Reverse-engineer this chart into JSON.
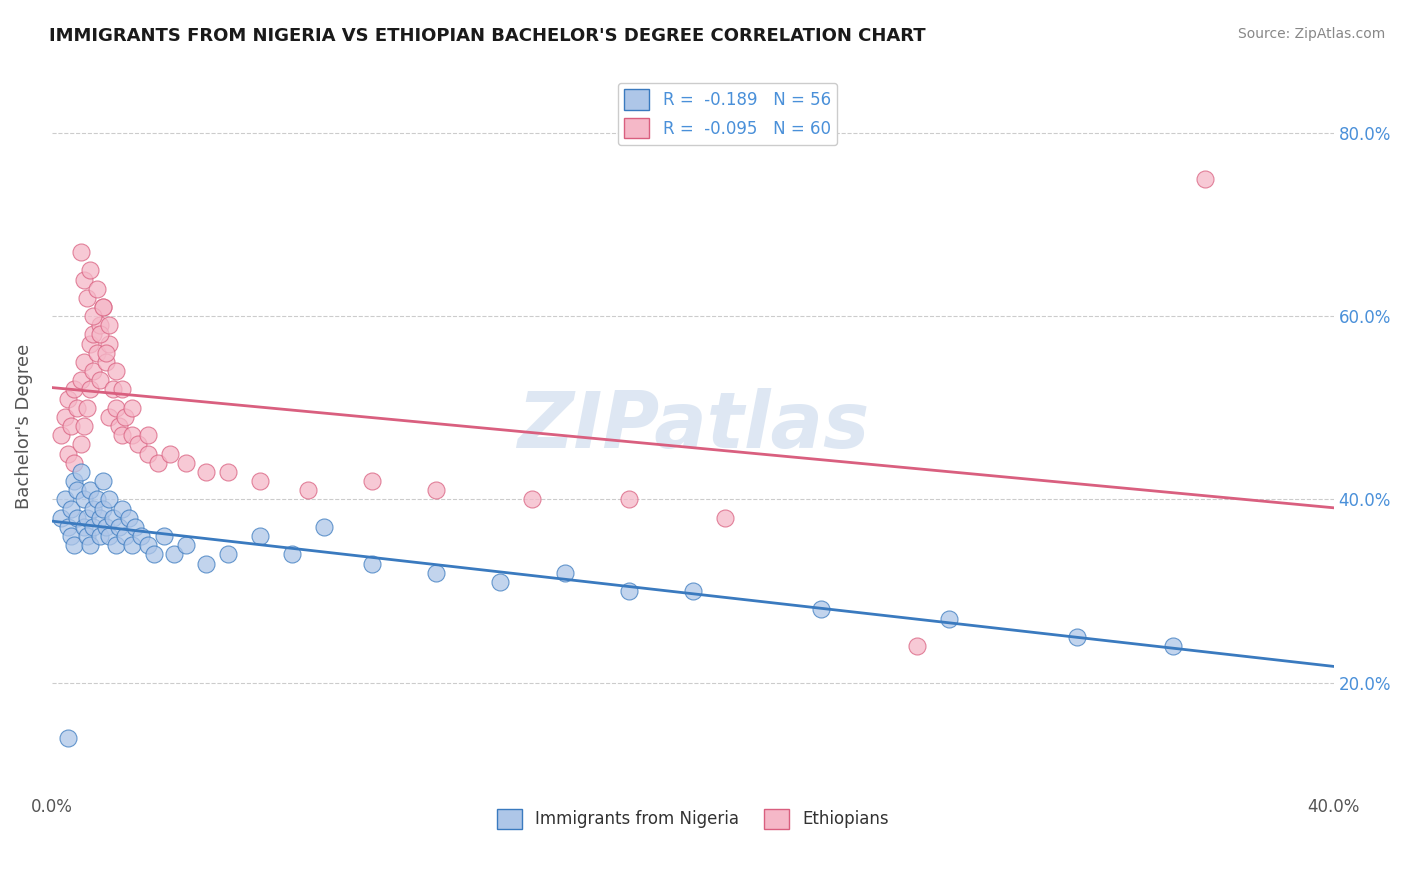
{
  "title": "IMMIGRANTS FROM NIGERIA VS ETHIOPIAN BACHELOR'S DEGREE CORRELATION CHART",
  "source": "Source: ZipAtlas.com",
  "ylabel": "Bachelor's Degree",
  "legend_labels": [
    "Immigrants from Nigeria",
    "Ethiopians"
  ],
  "r_nigeria": -0.189,
  "n_nigeria": 56,
  "r_ethiopian": -0.095,
  "n_ethiopian": 60,
  "xlim": [
    0.0,
    0.4
  ],
  "ylim": [
    0.08,
    0.88
  ],
  "ytick_positions": [
    0.2,
    0.4,
    0.6,
    0.8
  ],
  "ytick_labels": [
    "20.0%",
    "40.0%",
    "60.0%",
    "80.0%"
  ],
  "color_nigeria": "#aec6e8",
  "color_ethiopian": "#f5b8c8",
  "line_color_nigeria": "#3a7abf",
  "line_color_ethiopian": "#d95f7f",
  "watermark": "ZIPatlas",
  "nigeria_x": [
    0.003,
    0.004,
    0.005,
    0.006,
    0.006,
    0.007,
    0.007,
    0.008,
    0.008,
    0.009,
    0.01,
    0.01,
    0.011,
    0.011,
    0.012,
    0.012,
    0.013,
    0.013,
    0.014,
    0.015,
    0.015,
    0.016,
    0.016,
    0.017,
    0.018,
    0.018,
    0.019,
    0.02,
    0.021,
    0.022,
    0.023,
    0.024,
    0.025,
    0.026,
    0.028,
    0.03,
    0.032,
    0.035,
    0.038,
    0.042,
    0.048,
    0.055,
    0.065,
    0.075,
    0.085,
    0.1,
    0.12,
    0.14,
    0.16,
    0.18,
    0.2,
    0.24,
    0.28,
    0.32,
    0.35,
    0.005
  ],
  "nigeria_y": [
    0.38,
    0.4,
    0.37,
    0.39,
    0.36,
    0.42,
    0.35,
    0.41,
    0.38,
    0.43,
    0.37,
    0.4,
    0.36,
    0.38,
    0.41,
    0.35,
    0.39,
    0.37,
    0.4,
    0.38,
    0.36,
    0.39,
    0.42,
    0.37,
    0.4,
    0.36,
    0.38,
    0.35,
    0.37,
    0.39,
    0.36,
    0.38,
    0.35,
    0.37,
    0.36,
    0.35,
    0.34,
    0.36,
    0.34,
    0.35,
    0.33,
    0.34,
    0.36,
    0.34,
    0.37,
    0.33,
    0.32,
    0.31,
    0.32,
    0.3,
    0.3,
    0.28,
    0.27,
    0.25,
    0.24,
    0.14
  ],
  "ethiopian_x": [
    0.003,
    0.004,
    0.005,
    0.005,
    0.006,
    0.007,
    0.007,
    0.008,
    0.009,
    0.009,
    0.01,
    0.01,
    0.011,
    0.012,
    0.012,
    0.013,
    0.013,
    0.014,
    0.015,
    0.015,
    0.016,
    0.017,
    0.018,
    0.018,
    0.019,
    0.02,
    0.021,
    0.022,
    0.023,
    0.025,
    0.027,
    0.03,
    0.033,
    0.037,
    0.042,
    0.048,
    0.055,
    0.065,
    0.08,
    0.1,
    0.12,
    0.15,
    0.18,
    0.21,
    0.009,
    0.01,
    0.011,
    0.012,
    0.013,
    0.014,
    0.015,
    0.016,
    0.017,
    0.018,
    0.02,
    0.022,
    0.025,
    0.03,
    0.27,
    0.36
  ],
  "ethiopian_y": [
    0.47,
    0.49,
    0.51,
    0.45,
    0.48,
    0.52,
    0.44,
    0.5,
    0.46,
    0.53,
    0.48,
    0.55,
    0.5,
    0.57,
    0.52,
    0.58,
    0.54,
    0.56,
    0.59,
    0.53,
    0.61,
    0.55,
    0.57,
    0.49,
    0.52,
    0.5,
    0.48,
    0.47,
    0.49,
    0.47,
    0.46,
    0.45,
    0.44,
    0.45,
    0.44,
    0.43,
    0.43,
    0.42,
    0.41,
    0.42,
    0.41,
    0.4,
    0.4,
    0.38,
    0.67,
    0.64,
    0.62,
    0.65,
    0.6,
    0.63,
    0.58,
    0.61,
    0.56,
    0.59,
    0.54,
    0.52,
    0.5,
    0.47,
    0.24,
    0.75
  ]
}
